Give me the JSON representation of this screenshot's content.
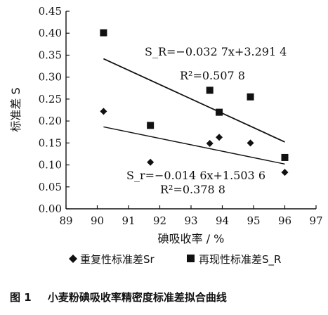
{
  "chart_data": {
    "type": "scatter",
    "xlabel": "碘吸收率 / %",
    "ylabel": "标准差 S",
    "xlim": [
      89,
      97
    ],
    "ylim": [
      0.0,
      0.45
    ],
    "x_ticks": [
      "89",
      "90",
      "91",
      "92",
      "93",
      "94",
      "95",
      "96",
      "97"
    ],
    "y_ticks": [
      "0.00",
      "0.05",
      "0.10",
      "0.15",
      "0.20",
      "0.25",
      "0.30",
      "0.35",
      "0.40",
      "0.45"
    ],
    "grid": false,
    "legend_position": "bottom",
    "series": [
      {
        "name": "重复性标准差Sr",
        "marker": "diamond",
        "x": [
          90.2,
          91.7,
          93.6,
          93.9,
          94.9,
          96.0
        ],
        "y": [
          0.222,
          0.106,
          0.149,
          0.163,
          0.15,
          0.083
        ],
        "fit": {
          "label": "S_r=−0.014 6x+1.503 6",
          "slope": -0.0146,
          "intercept": 1.5036,
          "x_range": [
            90.2,
            96.0
          ],
          "r2_label": "R²=0.378 8"
        }
      },
      {
        "name": "再现性标准差S_R",
        "marker": "square",
        "x": [
          90.2,
          91.7,
          93.6,
          93.9,
          94.9,
          96.0
        ],
        "y": [
          0.401,
          0.19,
          0.27,
          0.22,
          0.255,
          0.117
        ],
        "fit": {
          "label": "S_R=−0.032 7x+3.291 4",
          "slope": -0.0327,
          "intercept": 3.2914,
          "x_range": [
            90.2,
            96.0
          ],
          "r2_label": "R²=0.507 8"
        }
      }
    ]
  },
  "caption": {
    "number": "图 1",
    "text": "小麦粉碘吸收率精密度标准差拟合曲线"
  },
  "colors": {
    "ink": "#111111",
    "background": "#ffffff"
  }
}
